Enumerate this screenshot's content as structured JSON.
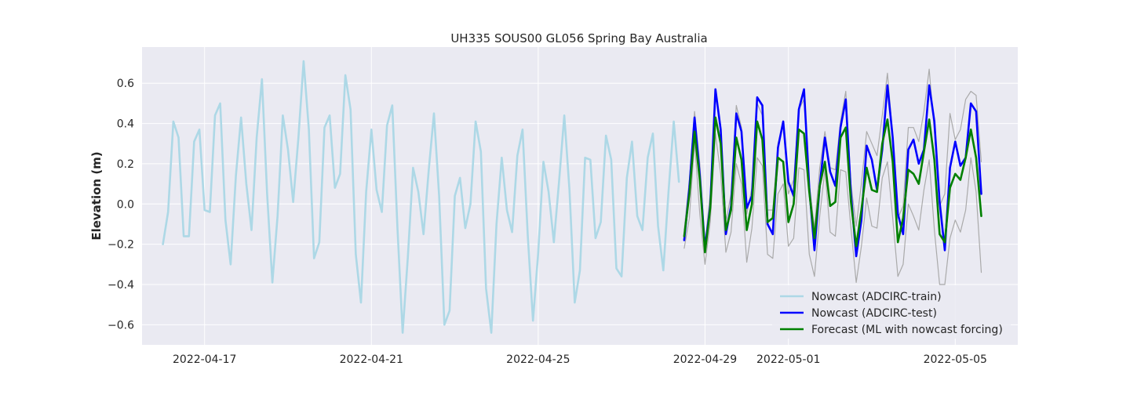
{
  "chart_data": {
    "type": "line",
    "title": "UH335 SOUS00 GL056 Spring Bay Australia",
    "xlabel": "",
    "ylabel": "Elevation (m)",
    "xlim": [
      "2022-04-15 12:00",
      "2022-05-06 12:00"
    ],
    "ylim": [
      -0.7,
      0.78
    ],
    "x_ticks": [
      "2022-04-17",
      "2022-04-21",
      "2022-04-25",
      "2022-04-29",
      "2022-05-01",
      "2022-05-05"
    ],
    "y_ticks": [
      -0.6,
      -0.4,
      -0.2,
      0.0,
      0.2,
      0.4,
      0.6
    ],
    "y_tick_labels": [
      "−0.6",
      "−0.4",
      "−0.2",
      "0.0",
      "0.2",
      "0.4",
      "0.6"
    ],
    "grid": true,
    "legend_position": "bottom-right",
    "colors": {
      "background": "#eaeaf2",
      "grid": "#ffffff",
      "train": "#add8e6",
      "test": "#0000ff",
      "forecast": "#008000",
      "ensemble": "#aaaaaa"
    },
    "series": [
      {
        "name": "Nowcast (ADCIRC-train)",
        "role": "train",
        "start": "2022-04-16 00:00",
        "step_hours": 3,
        "values": [
          -0.2,
          -0.04,
          0.41,
          0.33,
          -0.16,
          -0.16,
          0.31,
          0.37,
          -0.03,
          -0.04,
          0.44,
          0.5,
          -0.08,
          -0.3,
          0.14,
          0.43,
          0.1,
          -0.13,
          0.33,
          0.62,
          0.05,
          -0.39,
          -0.06,
          0.44,
          0.27,
          0.01,
          0.33,
          0.71,
          0.37,
          -0.27,
          -0.19,
          0.38,
          0.44,
          0.08,
          0.15,
          0.64,
          0.47,
          -0.25,
          -0.49,
          0.06,
          0.37,
          0.07,
          -0.04,
          0.39,
          0.49,
          -0.12,
          -0.64,
          -0.26,
          0.18,
          0.06,
          -0.15,
          0.17,
          0.45,
          0.04,
          -0.6,
          -0.53,
          0.04,
          0.13,
          -0.12,
          0.0,
          0.41,
          0.26,
          -0.42,
          -0.64,
          -0.1,
          0.23,
          -0.03,
          -0.14,
          0.24,
          0.37,
          -0.16,
          -0.58,
          -0.24,
          0.21,
          0.06,
          -0.19,
          0.11,
          0.44,
          0.07,
          -0.49,
          -0.33,
          0.23,
          0.22,
          -0.17,
          -0.09,
          0.34,
          0.22,
          -0.32,
          -0.36,
          0.13,
          0.31,
          -0.06,
          -0.13,
          0.23,
          0.35,
          -0.11,
          -0.33,
          0.06,
          0.41,
          0.11
        ]
      },
      {
        "name": "Nowcast (ADCIRC-test)",
        "role": "test",
        "start": "2022-04-28 12:00",
        "step_hours": 3,
        "values": [
          -0.18,
          0.08,
          0.43,
          0.14,
          -0.22,
          -0.01,
          0.57,
          0.37,
          -0.15,
          -0.01,
          0.45,
          0.36,
          -0.02,
          0.04,
          0.53,
          0.49,
          -0.1,
          -0.15,
          0.28,
          0.41,
          0.11,
          0.04,
          0.47,
          0.57,
          0.08,
          -0.23,
          0.09,
          0.33,
          0.16,
          0.09,
          0.38,
          0.52,
          0.05,
          -0.26,
          -0.08,
          0.29,
          0.22,
          0.07,
          0.27,
          0.59,
          0.33,
          -0.05,
          -0.15,
          0.27,
          0.32,
          0.2,
          0.27,
          0.59,
          0.41,
          0.01,
          -0.23,
          0.18,
          0.31,
          0.19,
          0.23,
          0.5,
          0.46,
          0.05
        ]
      },
      {
        "name": "Forecast (ML with nowcast forcing)",
        "role": "forecast",
        "start": "2022-04-28 12:00",
        "step_hours": 3,
        "values": [
          -0.16,
          0.05,
          0.36,
          0.12,
          -0.24,
          -0.02,
          0.43,
          0.3,
          -0.13,
          -0.03,
          0.33,
          0.22,
          -0.13,
          0.0,
          0.41,
          0.32,
          -0.09,
          -0.07,
          0.23,
          0.21,
          -0.09,
          0.0,
          0.37,
          0.35,
          0.06,
          -0.17,
          0.09,
          0.21,
          -0.01,
          0.01,
          0.33,
          0.38,
          0.01,
          -0.21,
          -0.03,
          0.18,
          0.07,
          0.06,
          0.3,
          0.42,
          0.21,
          -0.19,
          -0.07,
          0.17,
          0.15,
          0.1,
          0.26,
          0.42,
          0.22,
          -0.15,
          -0.19,
          0.08,
          0.15,
          0.12,
          0.23,
          0.37,
          0.23,
          -0.06
        ]
      },
      {
        "role": "ensemble-upper",
        "start": "2022-04-28 12:00",
        "step_hours": 3,
        "values": [
          -0.13,
          0.12,
          0.46,
          0.2,
          -0.2,
          0.05,
          0.55,
          0.39,
          -0.09,
          0.05,
          0.49,
          0.38,
          -0.05,
          0.08,
          0.5,
          0.44,
          -0.03,
          -0.03,
          0.3,
          0.4,
          0.05,
          0.12,
          0.47,
          0.52,
          0.1,
          -0.12,
          0.18,
          0.36,
          0.18,
          0.17,
          0.41,
          0.56,
          0.1,
          -0.11,
          0.1,
          0.36,
          0.3,
          0.24,
          0.44,
          0.65,
          0.34,
          -0.07,
          -0.01,
          0.38,
          0.38,
          0.31,
          0.46,
          0.67,
          0.36,
          -0.01,
          0.05,
          0.45,
          0.32,
          0.37,
          0.52,
          0.56,
          0.54,
          0.21
        ]
      },
      {
        "role": "ensemble-lower",
        "start": "2022-04-28 12:00",
        "step_hours": 3,
        "values": [
          -0.22,
          -0.07,
          0.31,
          -0.05,
          -0.3,
          -0.09,
          0.35,
          0.15,
          -0.24,
          -0.14,
          0.2,
          0.1,
          -0.29,
          -0.12,
          0.23,
          0.19,
          -0.25,
          -0.27,
          0.05,
          0.1,
          -0.21,
          -0.17,
          0.18,
          0.17,
          -0.25,
          -0.36,
          -0.06,
          0.17,
          -0.14,
          -0.16,
          0.17,
          0.16,
          -0.12,
          -0.39,
          -0.21,
          0.03,
          -0.11,
          -0.12,
          0.13,
          0.21,
          -0.07,
          -0.36,
          -0.3,
          0.0,
          -0.06,
          -0.13,
          0.07,
          0.22,
          -0.13,
          -0.4,
          -0.4,
          -0.17,
          -0.08,
          -0.14,
          -0.03,
          0.23,
          0.06,
          -0.34
        ]
      }
    ]
  }
}
